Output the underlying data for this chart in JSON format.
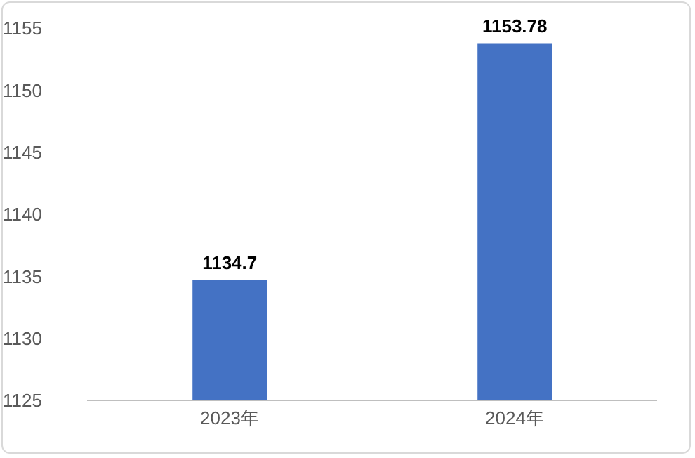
{
  "chart_data": {
    "type": "bar",
    "categories": [
      "2023年",
      "2024年"
    ],
    "values": [
      1134.7,
      1153.78
    ],
    "color": "#4472c4",
    "ylim": [
      1125,
      1155
    ],
    "yticks": [
      1125,
      1130,
      1135,
      1140,
      1145,
      1150,
      1155
    ],
    "data_labels": true
  }
}
